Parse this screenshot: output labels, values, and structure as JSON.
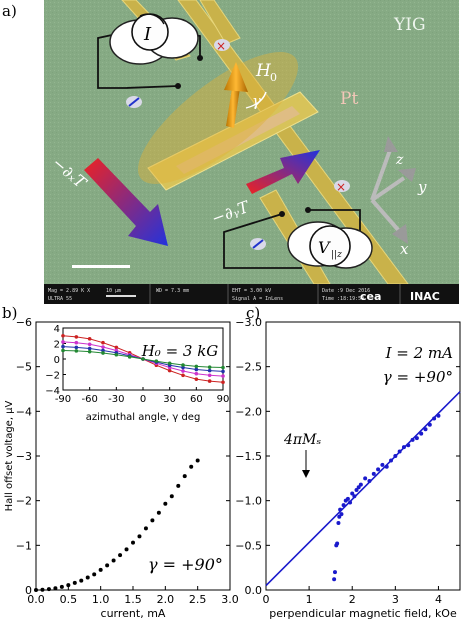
{
  "panel_a": {
    "label": "a)",
    "material_label": "YIG",
    "pt_label": "Pt",
    "field_label": "H",
    "field_subscript": "0",
    "gamma_symbol": "γ",
    "gradient_x_label": "−∂ₓT",
    "gradient_y_label": "−∂ᵧT",
    "current_meter_symbol": "I",
    "voltage_meter_symbol": "V",
    "voltage_meter_subscript": "||z",
    "axis_labels": {
      "x": "x",
      "y": "y",
      "z": "z"
    },
    "sem_info": {
      "mag": "Mag = 2.89 K X",
      "scale": "10 μm",
      "wd": "WD = 7.3 mm",
      "eht": "EHT = 3.00 kV",
      "signal": "Signal A = InLens",
      "date": "Date :9 Dec 2016",
      "time": "Time :18:19:59",
      "instrument": "ULTRA 55",
      "logo1": "cea",
      "logo2": "INAC"
    }
  },
  "chart_data": [
    {
      "panel_label": "b)",
      "type": "scatter",
      "xlabel": "current, mA",
      "ylabel": "Hall offset voltage, μV",
      "xlim": [
        0.0,
        3.0
      ],
      "ylim": [
        0,
        -6
      ],
      "x_ticks": [
        "0.0",
        "0.5",
        "1.0",
        "1.5",
        "2.0",
        "2.5",
        "3.0"
      ],
      "y_ticks": [
        "0",
        "−1",
        "−2",
        "−3",
        "−4",
        "−5",
        "−6"
      ],
      "annotation": "γ = +90°",
      "x": [
        0.0,
        0.1,
        0.2,
        0.3,
        0.4,
        0.5,
        0.6,
        0.7,
        0.8,
        0.9,
        1.0,
        1.1,
        1.2,
        1.3,
        1.4,
        1.5,
        1.6,
        1.7,
        1.8,
        1.9,
        2.0,
        2.1,
        2.2,
        2.3,
        2.4,
        2.5
      ],
      "y": [
        0.0,
        -0.005,
        -0.02,
        -0.04,
        -0.07,
        -0.11,
        -0.16,
        -0.21,
        -0.28,
        -0.35,
        -0.45,
        -0.55,
        -0.66,
        -0.78,
        -0.91,
        -1.06,
        -1.2,
        -1.38,
        -1.56,
        -1.73,
        -1.93,
        -2.1,
        -2.33,
        -2.55,
        -2.76,
        -2.9
      ],
      "inset": {
        "type": "line",
        "xlabel": "azimuthal angle, γ deg",
        "xlim": [
          -90,
          90
        ],
        "ylim": [
          -4,
          4
        ],
        "x_ticks": [
          "-90",
          "-60",
          "-30",
          "0",
          "30",
          "60",
          "90"
        ],
        "y_ticks": [
          "4",
          "2",
          "0",
          "−2",
          "−4"
        ],
        "annotation": "H₀ = 3 kG",
        "x": [
          -90,
          -75,
          -60,
          -45,
          -30,
          -15,
          0,
          15,
          30,
          45,
          60,
          75,
          90
        ],
        "series": [
          {
            "color": "#cc2222",
            "values": [
              3.0,
              2.85,
              2.6,
              2.1,
              1.5,
              0.8,
              0.0,
              -0.8,
              -1.5,
              -2.1,
              -2.6,
              -2.85,
              -3.0
            ]
          },
          {
            "color": "#cc33cc",
            "values": [
              2.2,
              2.1,
              1.9,
              1.55,
              1.1,
              0.55,
              0.0,
              -0.55,
              -1.1,
              -1.55,
              -1.9,
              -2.1,
              -2.2
            ]
          },
          {
            "color": "#2233aa",
            "values": [
              1.6,
              1.5,
              1.35,
              1.1,
              0.8,
              0.4,
              0.0,
              -0.4,
              -0.8,
              -1.1,
              -1.35,
              -1.5,
              -1.6
            ]
          },
          {
            "color": "#228833",
            "values": [
              1.1,
              1.05,
              0.95,
              0.78,
              0.55,
              0.28,
              0.0,
              -0.28,
              -0.55,
              -0.78,
              -0.95,
              -1.05,
              -1.1
            ]
          }
        ]
      }
    },
    {
      "panel_label": "c)",
      "type": "scatter",
      "xlabel": "perpendicular magnetic field, kOe",
      "ylabel": "",
      "xlim": [
        0,
        4.5
      ],
      "ylim": [
        0.0,
        -3.0
      ],
      "x_ticks": [
        "0",
        "1",
        "2",
        "3",
        "4"
      ],
      "y_ticks": [
        "0.0",
        "−0.5",
        "−1.0",
        "−1.5",
        "−2.0",
        "−2.5",
        "−3.0"
      ],
      "annotation_current": "I = 2 mA",
      "annotation_angle": "γ = +90°",
      "annotation_ms": "4πMₛ",
      "fit_line": {
        "x": [
          0,
          4.5
        ],
        "y": [
          -0.05,
          -2.22
        ]
      },
      "x": [
        1.58,
        1.6,
        1.63,
        1.65,
        1.68,
        1.7,
        1.72,
        1.75,
        1.8,
        1.85,
        1.9,
        1.95,
        2.0,
        2.05,
        2.1,
        2.15,
        2.2,
        2.3,
        2.4,
        2.5,
        2.6,
        2.7,
        2.8,
        2.9,
        3.0,
        3.1,
        3.2,
        3.3,
        3.4,
        3.5,
        3.6,
        3.7,
        3.8,
        3.9,
        4.0
      ],
      "y": [
        -0.12,
        -0.2,
        -0.5,
        -0.52,
        -0.75,
        -0.82,
        -0.9,
        -0.85,
        -0.95,
        -1.0,
        -1.02,
        -0.98,
        -1.08,
        -1.05,
        -1.12,
        -1.15,
        -1.18,
        -1.25,
        -1.22,
        -1.3,
        -1.35,
        -1.4,
        -1.38,
        -1.45,
        -1.5,
        -1.55,
        -1.6,
        -1.62,
        -1.68,
        -1.7,
        -1.75,
        -1.8,
        -1.85,
        -1.92,
        -1.95
      ]
    }
  ]
}
